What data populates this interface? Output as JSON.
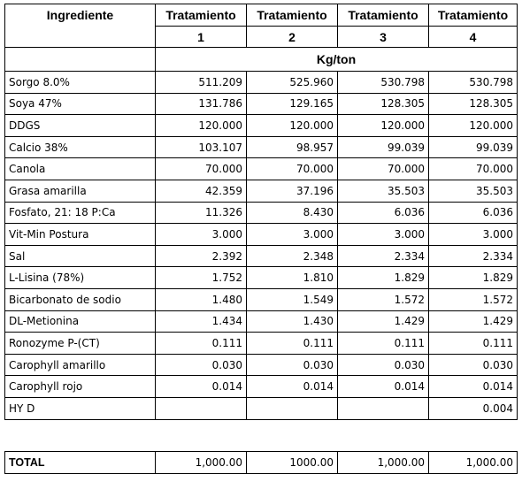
{
  "header": {
    "ingredient_label": "Ingrediente",
    "treatments": [
      {
        "label": "Tratamiento",
        "number": "1"
      },
      {
        "label": "Tratamiento",
        "number": "2"
      },
      {
        "label": "Tratamiento",
        "number": "3"
      },
      {
        "label": "Tratamiento",
        "number": "4"
      }
    ],
    "units": "Kg/ton"
  },
  "rows": [
    {
      "name": "Sorgo 8.0%",
      "values": [
        "511.209",
        "525.960",
        "530.798",
        "530.798"
      ]
    },
    {
      "name": "Soya 47%",
      "values": [
        "131.786",
        "129.165",
        "128.305",
        "128.305"
      ]
    },
    {
      "name": "DDGS",
      "values": [
        "120.000",
        "120.000",
        "120.000",
        "120.000"
      ]
    },
    {
      "name": "Calcio 38%",
      "values": [
        "103.107",
        "98.957",
        "99.039",
        "99.039"
      ]
    },
    {
      "name": "Canola",
      "values": [
        "70.000",
        "70.000",
        "70.000",
        "70.000"
      ]
    },
    {
      "name": "Grasa amarilla",
      "values": [
        "42.359",
        "37.196",
        "35.503",
        "35.503"
      ]
    },
    {
      "name": "Fosfato,  21: 18 P:Ca",
      "values": [
        "11.326",
        "8.430",
        "6.036",
        "6.036"
      ]
    },
    {
      "name": "Vit-Min Postura",
      "values": [
        "3.000",
        "3.000",
        "3.000",
        "3.000"
      ]
    },
    {
      "name": "Sal",
      "values": [
        "2.392",
        "2.348",
        "2.334",
        "2.334"
      ]
    },
    {
      "name": "L-Lisina (78%)",
      "values": [
        "1.752",
        "1.810",
        "1.829",
        "1.829"
      ]
    },
    {
      "name": "Bicarbonato de sodio",
      "values": [
        "1.480",
        "1.549",
        "1.572",
        "1.572"
      ]
    },
    {
      "name": "DL-Metionina",
      "values": [
        "1.434",
        "1.430",
        "1.429",
        "1.429"
      ]
    },
    {
      "name": "Ronozyme P-(CT)",
      "values": [
        "0.111",
        "0.111",
        "0.111",
        "0.111"
      ]
    },
    {
      "name": "Carophyll amarillo",
      "values": [
        "0.030",
        "0.030",
        "0.030",
        "0.030"
      ]
    },
    {
      "name": "Carophyll rojo",
      "values": [
        "0.014",
        "0.014",
        "0.014",
        "0.014"
      ]
    },
    {
      "name": "HY D",
      "values": [
        "",
        "",
        "",
        "0.004"
      ]
    }
  ],
  "total": {
    "label": "TOTAL",
    "values": [
      "1,000.00",
      "1000.00",
      "1,000.00",
      "1,000.00"
    ]
  }
}
